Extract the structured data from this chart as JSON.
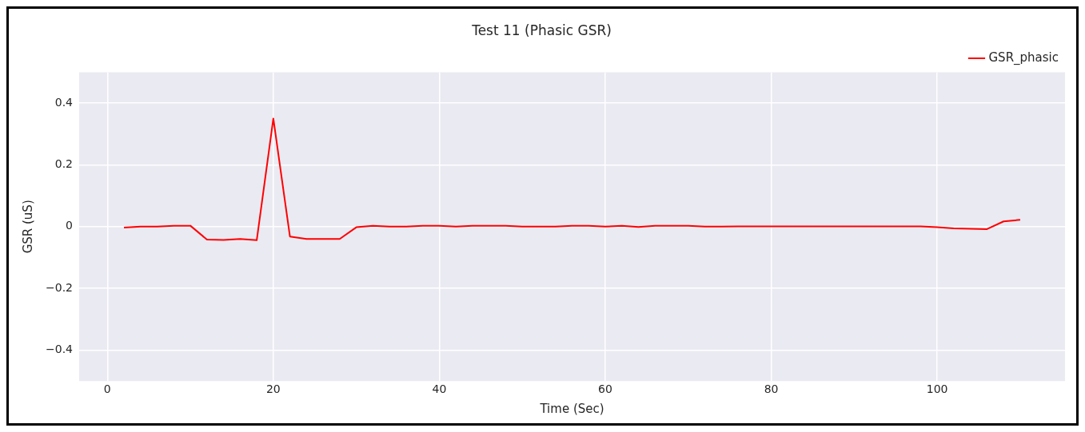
{
  "chart_data": {
    "type": "line",
    "title": "Test 11 (Phasic GSR)",
    "xlabel": "Time (Sec)",
    "ylabel": "GSR (uS)",
    "x": [
      2,
      4,
      6,
      8,
      10,
      12,
      14,
      16,
      18,
      20,
      22,
      24,
      26,
      28,
      30,
      32,
      34,
      36,
      38,
      40,
      42,
      44,
      46,
      48,
      50,
      52,
      54,
      56,
      58,
      60,
      62,
      64,
      66,
      68,
      70,
      72,
      74,
      76,
      78,
      80,
      82,
      84,
      86,
      88,
      90,
      92,
      94,
      96,
      98,
      100,
      102,
      104,
      106,
      108,
      110
    ],
    "series": [
      {
        "name": "GSR_phasic",
        "color": "#ff0000",
        "values": [
          -0.003,
          0,
          0,
          0.003,
          0.003,
          -0.042,
          -0.043,
          -0.04,
          -0.044,
          0.35,
          -0.032,
          -0.04,
          -0.04,
          -0.04,
          -0.002,
          0.003,
          0,
          0,
          0.003,
          0.003,
          0,
          0.003,
          0.003,
          0.003,
          0,
          0,
          0,
          0.003,
          0.003,
          0,
          0.003,
          -0.001,
          0.003,
          0.003,
          0.003,
          0,
          0,
          0.001,
          0.001,
          0.001,
          0.001,
          0.001,
          0.001,
          0.001,
          0.001,
          0.001,
          0.001,
          0.001,
          0.001,
          -0.002,
          -0.006,
          -0.007,
          -0.008,
          0.017,
          0.022
        ]
      }
    ],
    "xlim": [
      -3.4,
      115.4
    ],
    "xticks": [
      0,
      20,
      40,
      60,
      80,
      100
    ],
    "ylim": [
      -0.5,
      0.5
    ],
    "yticks": [
      -0.4,
      -0.2,
      0,
      0.2,
      0.4
    ],
    "grid": true,
    "legend": "top right",
    "marker": "none",
    "line_style": "solid"
  }
}
